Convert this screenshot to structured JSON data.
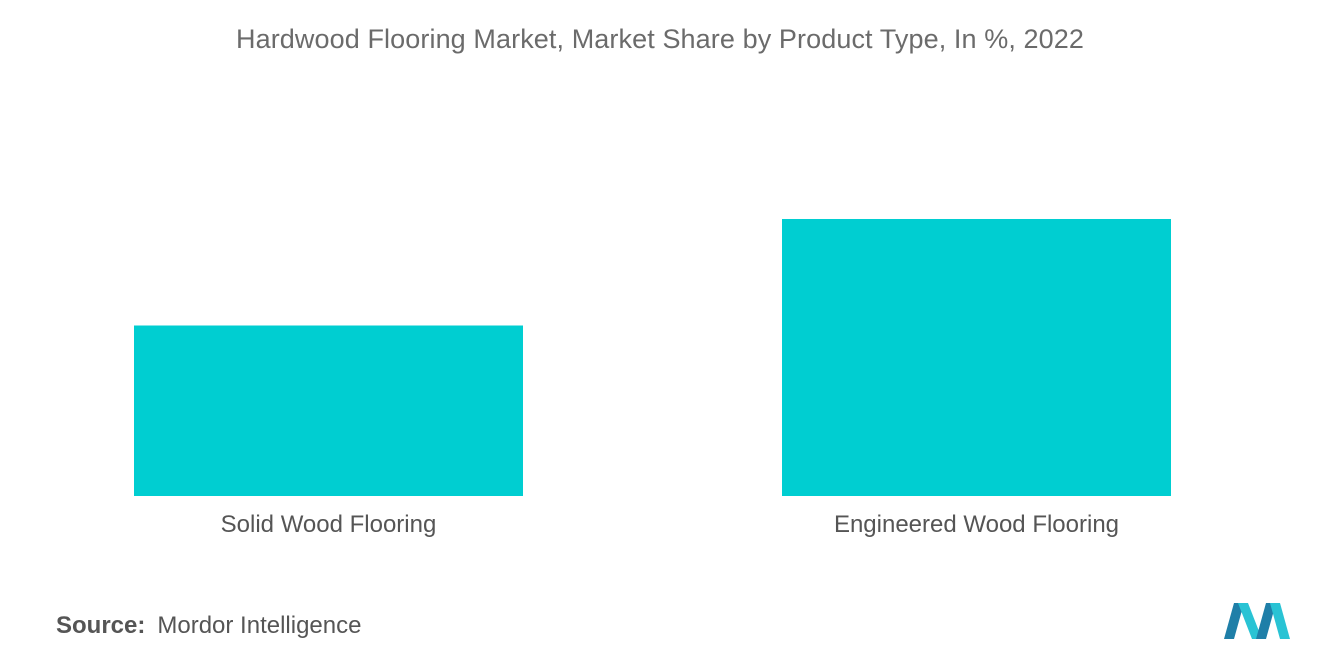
{
  "chart_data": {
    "type": "bar",
    "title": "Hardwood Flooring Market, Market Share by Product Type,  In %, 2022",
    "categories": [
      "Solid Wood Flooring",
      "Engineered Wood Flooring"
    ],
    "values": [
      38.1,
      61.9
    ],
    "ylim": [
      0,
      80
    ],
    "grid": false,
    "bar_color": "#00ced1"
  },
  "source": {
    "label": "Source:",
    "text": "Mordor Intelligence"
  },
  "logo": {
    "icon": "mordor-intelligence-logo",
    "colors": [
      "#1f7fa8",
      "#29c3d4"
    ]
  }
}
